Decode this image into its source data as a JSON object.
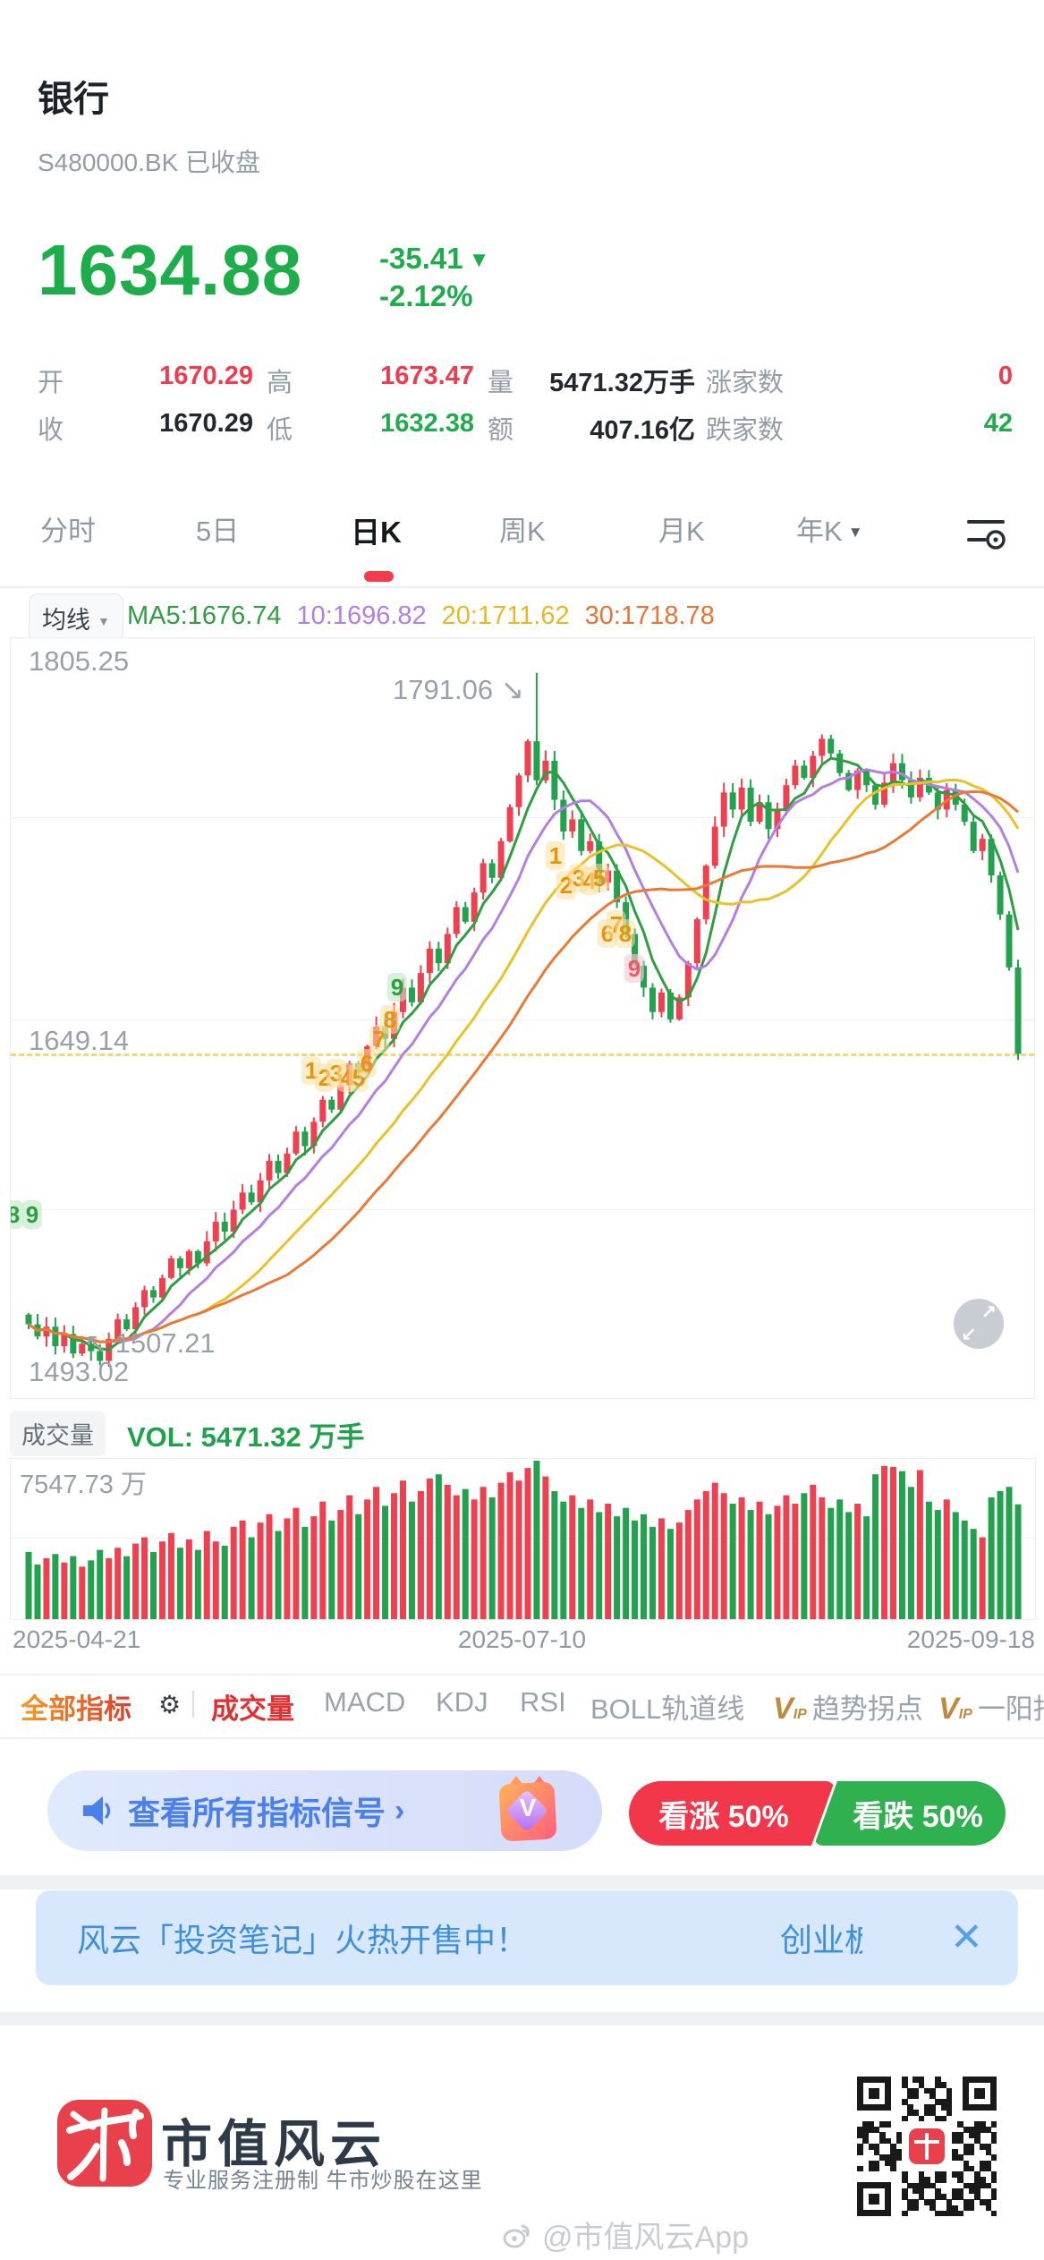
{
  "header": {
    "title": "银行",
    "symbol_status": "S480000.BK 已收盘",
    "price": "1634.88",
    "change": "-35.41",
    "down_arrow": "▼",
    "change_pct": "-2.12%"
  },
  "quote": {
    "open_label": "开",
    "open": "1670.29",
    "high_label": "高",
    "high": "1673.47",
    "vol_label": "量",
    "vol": "5471.32万手",
    "up_count_label": "涨家数",
    "up_count": "0",
    "close_label": "收",
    "prev_close": "1670.29",
    "low_label": "低",
    "low": "1632.38",
    "amount_label": "额",
    "amount": "407.16亿",
    "down_count_label": "跌家数",
    "down_count": "42"
  },
  "tabs": {
    "items": [
      "分时",
      "5日",
      "日K",
      "周K",
      "月K",
      "年K"
    ],
    "active": "日K",
    "dropdown_arrow": "▼"
  },
  "ma_bar": {
    "button": "均线",
    "arrow": "▼",
    "items": [
      {
        "label": "MA5:1676.74",
        "color": "#2f9e42"
      },
      {
        "label": "10:1696.82",
        "color": "#b37fe3"
      },
      {
        "label": "20:1711.62",
        "color": "#e9b822"
      },
      {
        "label": "30:1718.78",
        "color": "#e87335"
      }
    ]
  },
  "chart_data": {
    "type": "candlestick",
    "title": "银行 S480000.BK 日K",
    "ylim": [
      1493.02,
      1805.25
    ],
    "axis_labels": {
      "top": "1805.25",
      "grid_mid": "1649.14",
      "bottom": "1493.02"
    },
    "peak_label": "1791.06",
    "peak_arrow": "↘",
    "low_label": "1507.21",
    "low_arrow": "↖",
    "current_price_line": 1634.88,
    "gridline_values": [
      1731.9,
      1649.14,
      1571.0
    ],
    "peak_idx": 57,
    "peak_value": 1791.06,
    "low_idx": 8,
    "low_value": 1507.21,
    "last_high": 1673.47,
    "last_low": 1632.38,
    "up_color": "#ef4050",
    "down_color": "#23a24d",
    "ma_periods": [
      5,
      10,
      20,
      30
    ],
    "ma_colors": [
      "#2f9e42",
      "#b37fe3",
      "#e9c227",
      "#e97a35"
    ],
    "dashed_color": "#f3d67c",
    "closes": [
      1524,
      1519,
      1523,
      1515,
      1520,
      1512,
      1516,
      1513,
      1509,
      1518,
      1526,
      1522,
      1531,
      1538,
      1535,
      1543,
      1551,
      1547,
      1554,
      1549,
      1558,
      1566,
      1562,
      1571,
      1578,
      1574,
      1583,
      1591,
      1586,
      1594,
      1603,
      1597,
      1607,
      1616,
      1612,
      1622,
      1631,
      1627,
      1638,
      1646,
      1641,
      1652,
      1662,
      1656,
      1668,
      1678,
      1672,
      1684,
      1695,
      1689,
      1701,
      1713,
      1707,
      1722,
      1736,
      1749,
      1763,
      1747,
      1755,
      1739,
      1726,
      1731,
      1718,
      1722,
      1705,
      1710,
      1697,
      1684,
      1671,
      1662,
      1652,
      1660,
      1649,
      1658,
      1672,
      1690,
      1712,
      1728,
      1742,
      1735,
      1744,
      1730,
      1738,
      1727,
      1735,
      1745,
      1753,
      1748,
      1757,
      1764,
      1758,
      1750,
      1743,
      1751,
      1745,
      1737,
      1746,
      1754,
      1747,
      1740,
      1748,
      1742,
      1735,
      1743,
      1737,
      1730,
      1718,
      1723,
      1708,
      1692,
      1670.29,
      1634.88
    ],
    "volumes": [
      3200,
      2600,
      2900,
      3100,
      2700,
      3000,
      2500,
      2800,
      3300,
      2900,
      3400,
      3000,
      3600,
      3900,
      3200,
      3700,
      4100,
      3400,
      3800,
      3300,
      4200,
      3700,
      3500,
      4400,
      4700,
      3900,
      4600,
      5000,
      4200,
      4800,
      5300,
      4400,
      4900,
      5600,
      4700,
      5200,
      5900,
      5000,
      5700,
      6300,
      5400,
      6000,
      6600,
      5600,
      6100,
      6700,
      6900,
      6400,
      5900,
      6200,
      5700,
      6300,
      5800,
      6500,
      7000,
      6600,
      7200,
      7548,
      6800,
      6100,
      5600,
      5900,
      5300,
      5700,
      5100,
      5500,
      4900,
      5300,
      4700,
      5000,
      4400,
      4800,
      4300,
      4600,
      5200,
      5700,
      6100,
      6500,
      6000,
      5500,
      5800,
      5200,
      5600,
      5000,
      5400,
      5900,
      5500,
      6000,
      6400,
      5800,
      5300,
      5700,
      5100,
      5500,
      4900,
      6900,
      7300,
      7250,
      7050,
      6300,
      7100,
      5600,
      5200,
      5700,
      5100,
      4700,
      4300,
      3900,
      5800,
      6100,
      6300,
      5471
    ],
    "vol_max": 7547.73,
    "vol_axis_label": "7547.73 万",
    "dates": [
      "2025-04-21",
      "2025-07-10",
      "2025-09-18"
    ],
    "badges": [
      {
        "t": "8",
        "x": 3,
        "v": 1569,
        "s": "g"
      },
      {
        "t": "9",
        "x": 24,
        "v": 1569,
        "s": "g"
      },
      {
        "t": "1",
        "x": 336,
        "v": 1628,
        "s": "o"
      },
      {
        "t": "2",
        "x": 351,
        "v": 1625,
        "s": "o"
      },
      {
        "t": "3",
        "x": 364,
        "v": 1627,
        "s": "o"
      },
      {
        "t": "4",
        "x": 376,
        "v": 1625,
        "s": "o"
      },
      {
        "t": "5",
        "x": 389,
        "v": 1625,
        "s": "o"
      },
      {
        "t": "6",
        "x": 398,
        "v": 1631,
        "s": "o"
      },
      {
        "t": "7",
        "x": 412,
        "v": 1641,
        "s": "o"
      },
      {
        "t": "8",
        "x": 424,
        "v": 1649,
        "s": "o"
      },
      {
        "t": "9",
        "x": 432,
        "v": 1662,
        "s": "g"
      },
      {
        "t": "1",
        "x": 609,
        "v": 1716,
        "s": "o"
      },
      {
        "t": "2",
        "x": 621,
        "v": 1704,
        "s": "o"
      },
      {
        "t": "3",
        "x": 635,
        "v": 1707,
        "s": "o"
      },
      {
        "t": "4",
        "x": 647,
        "v": 1706,
        "s": "o"
      },
      {
        "t": "5",
        "x": 658,
        "v": 1707,
        "s": "o"
      },
      {
        "t": "6",
        "x": 667,
        "v": 1684,
        "s": "o"
      },
      {
        "t": "7",
        "x": 677,
        "v": 1688,
        "s": "o"
      },
      {
        "t": "8",
        "x": 687,
        "v": 1684,
        "s": "o"
      },
      {
        "t": "9",
        "x": 697,
        "v": 1670,
        "s": "r"
      }
    ]
  },
  "vol_header": {
    "chip": "成交量",
    "text": "VOL: 5471.32 万手"
  },
  "indicators": {
    "all": "全部指标",
    "vol": "成交量",
    "macd": "MACD",
    "kdj": "KDJ",
    "rsi": "RSI",
    "boll": "BOLL轨道线",
    "trend": "趋势拐点",
    "yyz": "一阳指",
    "vip_v": "V",
    "vip_ip": "IP"
  },
  "signal_bar": {
    "text": "查看所有指标信号",
    "arrow": "›",
    "vip_letter": "V"
  },
  "vote": {
    "up": "看涨 50%",
    "down": "看跌 50%"
  },
  "banner": {
    "text": "风云「投资笔记」火热开售中！",
    "right": "创业板",
    "close": "✕"
  },
  "footer": {
    "brand": "市值风云",
    "tagline": "专业服务注册制  牛市炒股在这里",
    "watermark": "@市值风云App"
  }
}
